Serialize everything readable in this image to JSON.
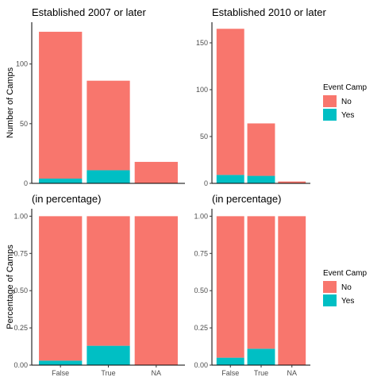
{
  "colors": {
    "No": "#F8766D",
    "Yes": "#00BFC4"
  },
  "legends": [
    {
      "title": "Event Camp",
      "labels": [
        "No",
        "Yes"
      ]
    },
    {
      "title": "Event Camp",
      "labels": [
        "No",
        "Yes"
      ]
    }
  ],
  "chart_data": [
    {
      "type": "bar",
      "stacked": true,
      "title": "Established 2007 or later",
      "ylabel": "Number of Camps",
      "categories": [
        "False",
        "True",
        "NA"
      ],
      "show_x_labels": false,
      "ylim": [
        0,
        135
      ],
      "yticks": [
        0,
        50,
        100
      ],
      "ytick_labels": [
        "0",
        "50",
        "100"
      ],
      "series": [
        {
          "name": "Yes",
          "values": [
            4,
            11,
            0
          ]
        },
        {
          "name": "No",
          "values": [
            123,
            75,
            18
          ]
        }
      ]
    },
    {
      "type": "bar",
      "stacked": true,
      "title": "Established 2010 or later",
      "ylabel": "",
      "categories": [
        "False",
        "True",
        "NA"
      ],
      "show_x_labels": false,
      "ylim": [
        0,
        172
      ],
      "yticks": [
        0,
        50,
        100,
        150
      ],
      "ytick_labels": [
        "0",
        "50",
        "100",
        "150"
      ],
      "series": [
        {
          "name": "Yes",
          "values": [
            9,
            8,
            0
          ]
        },
        {
          "name": "No",
          "values": [
            156,
            56,
            2
          ]
        }
      ]
    },
    {
      "type": "bar",
      "stacked": true,
      "title": "(in percentage)",
      "ylabel": "Percentage of Camps",
      "categories": [
        "False",
        "True",
        "NA"
      ],
      "show_x_labels": true,
      "ylim": [
        0,
        1.05
      ],
      "yticks": [
        0,
        0.25,
        0.5,
        0.75,
        1.0
      ],
      "ytick_labels": [
        "0.00",
        "0.25",
        "0.50",
        "0.75",
        "1.00"
      ],
      "series": [
        {
          "name": "Yes",
          "values": [
            0.03,
            0.13,
            0
          ]
        },
        {
          "name": "No",
          "values": [
            0.97,
            0.87,
            1.0
          ]
        }
      ]
    },
    {
      "type": "bar",
      "stacked": true,
      "title": "(in percentage)",
      "ylabel": "",
      "categories": [
        "False",
        "True",
        "NA"
      ],
      "show_x_labels": true,
      "ylim": [
        0,
        1.05
      ],
      "yticks": [
        0,
        0.25,
        0.5,
        0.75,
        1.0
      ],
      "ytick_labels": [
        "0.00",
        "0.25",
        "0.50",
        "0.75",
        "1.00"
      ],
      "series": [
        {
          "name": "Yes",
          "values": [
            0.05,
            0.11,
            0
          ]
        },
        {
          "name": "No",
          "values": [
            0.95,
            0.89,
            1.0
          ]
        }
      ]
    }
  ]
}
